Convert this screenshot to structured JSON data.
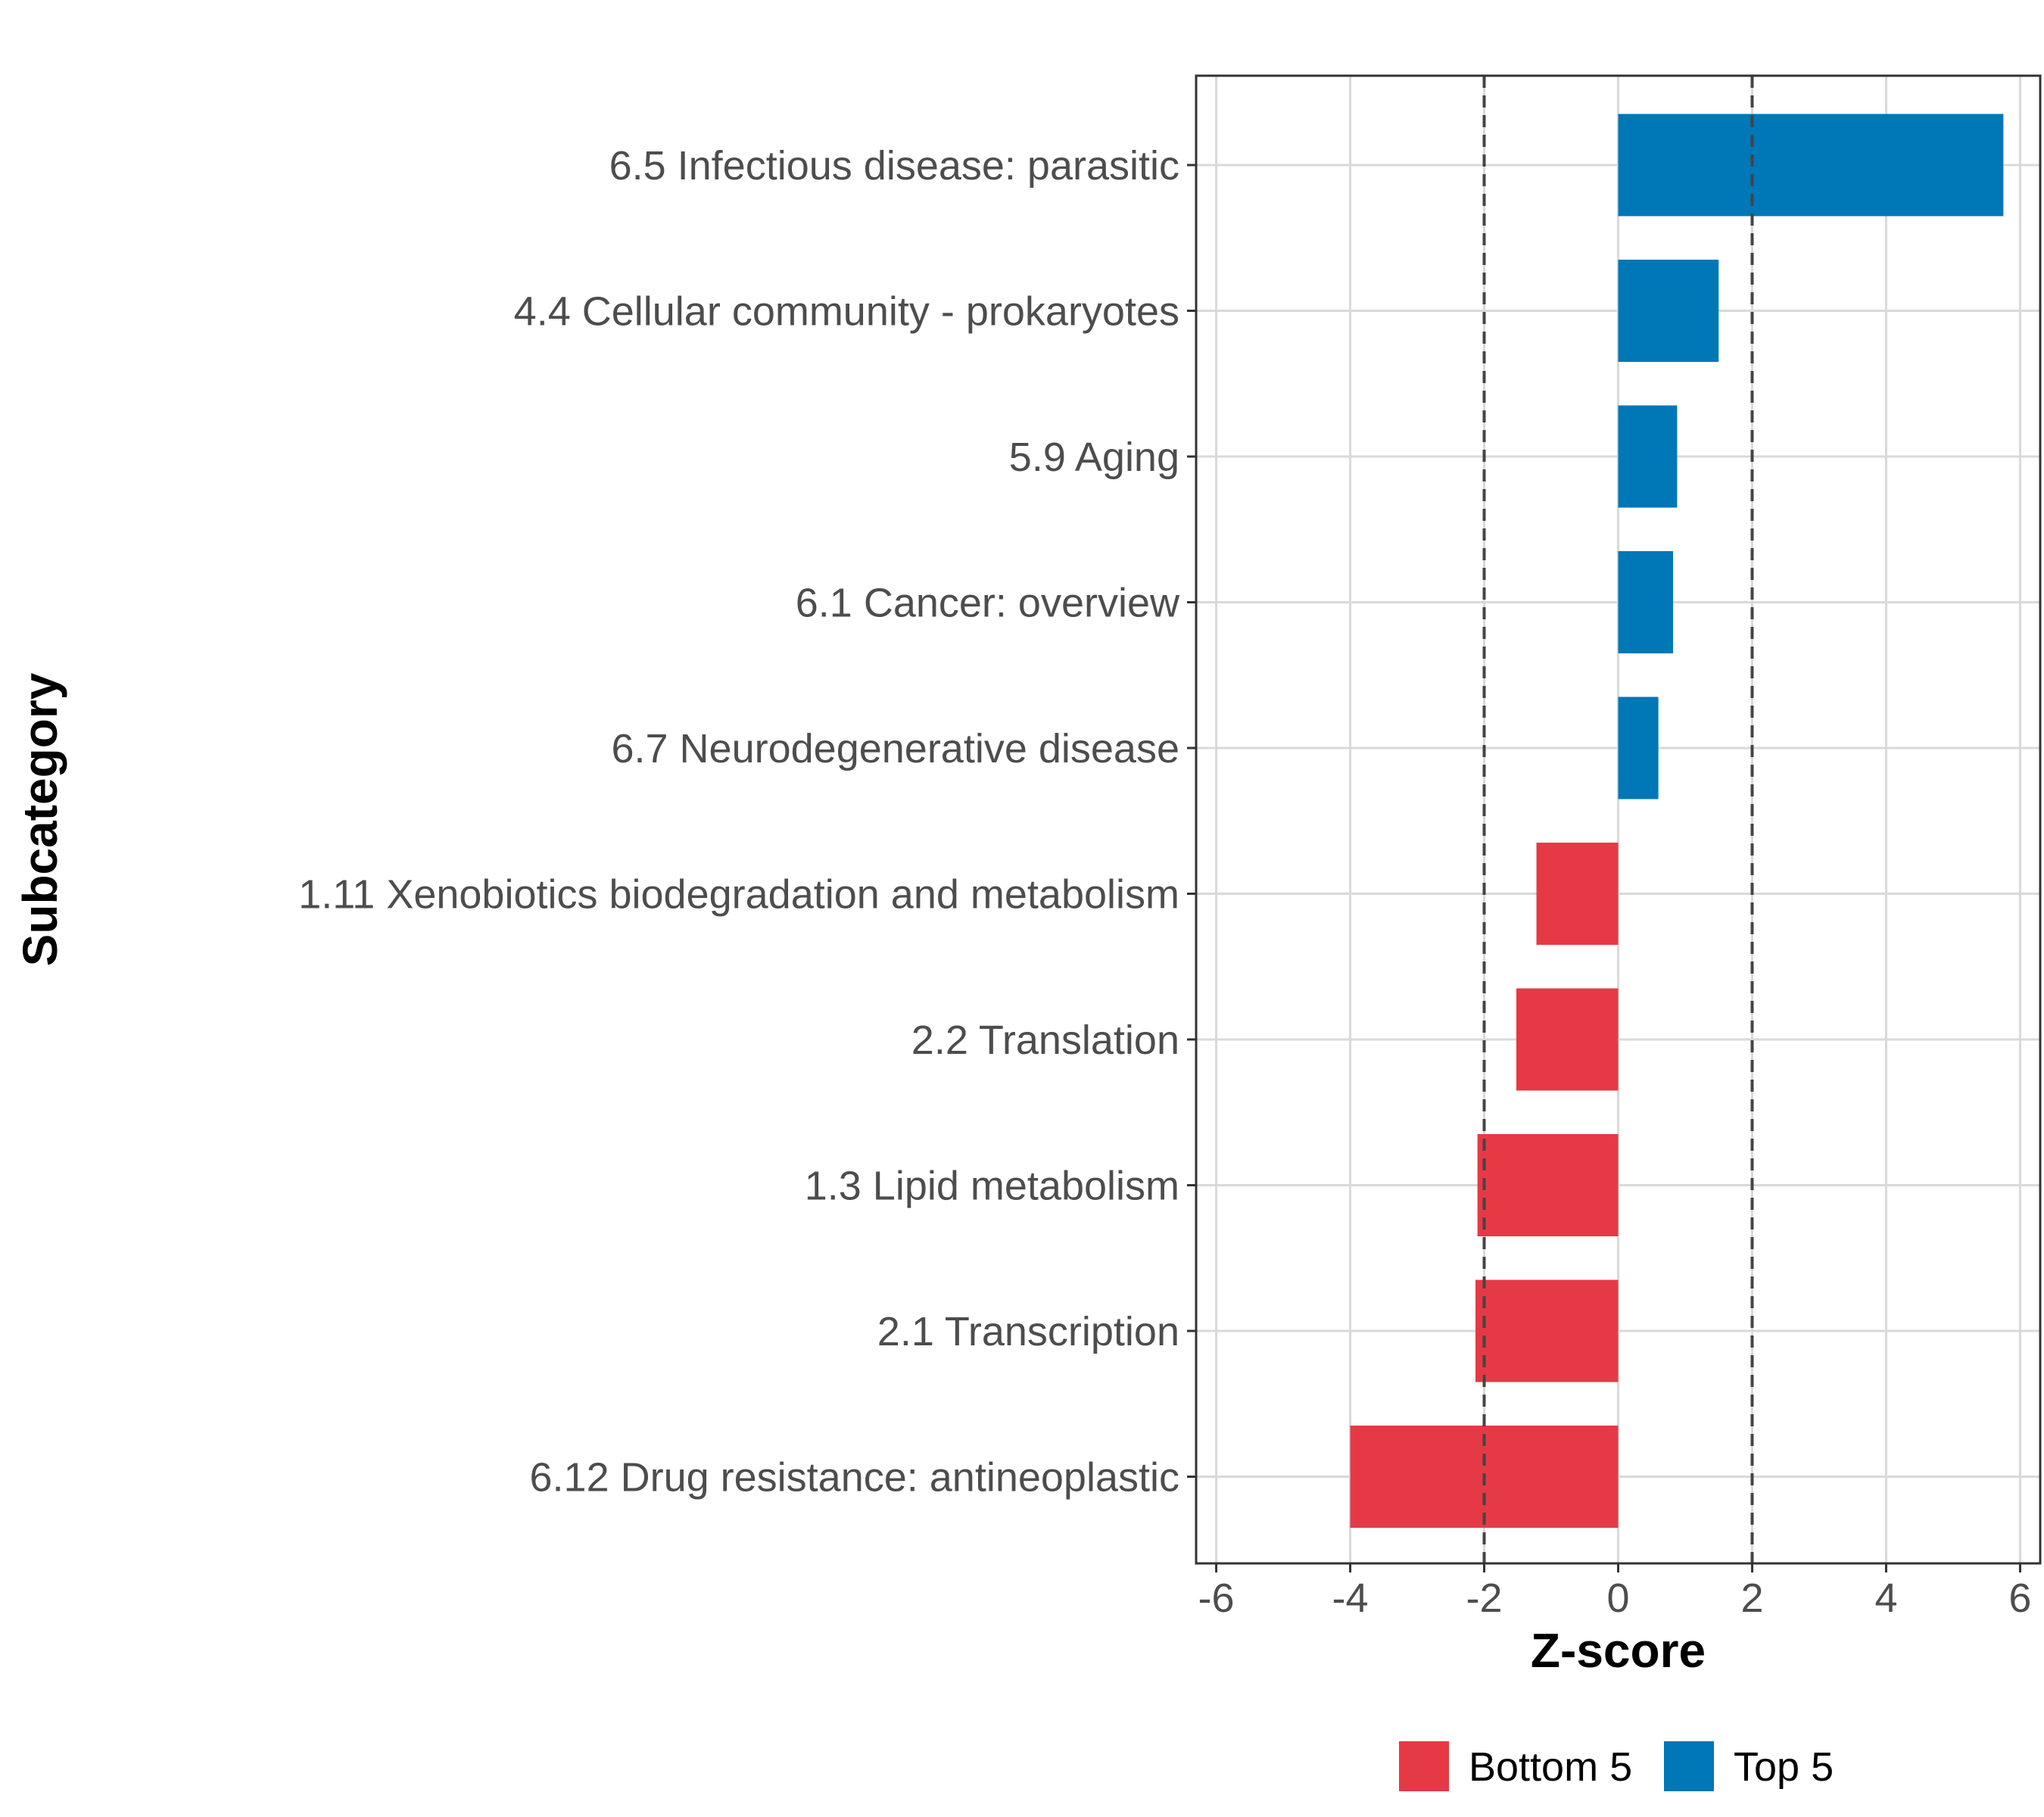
{
  "chart_data": {
    "type": "bar",
    "orientation": "horizontal",
    "title": "",
    "xlabel": "Z-score",
    "ylabel": "Subcategory",
    "xlim": [
      -6.3,
      6.3
    ],
    "xticks": [
      -6,
      -4,
      -2,
      0,
      2,
      4,
      6
    ],
    "reference_lines": [
      -2,
      2
    ],
    "grid": true,
    "legend_position": "bottom",
    "colors": {
      "Bottom 5": "#E63946",
      "Top 5": "#0077B6"
    },
    "legend": [
      {
        "name": "Bottom 5",
        "color": "#E63946"
      },
      {
        "name": "Top 5",
        "color": "#0077B6"
      }
    ],
    "bars": [
      {
        "category": "6.5 Infectious disease: parasitic",
        "value": 5.75,
        "group": "Top 5"
      },
      {
        "category": "4.4 Cellular community - prokaryotes",
        "value": 1.5,
        "group": "Top 5"
      },
      {
        "category": "5.9 Aging",
        "value": 0.88,
        "group": "Top 5"
      },
      {
        "category": "6.1 Cancer: overview",
        "value": 0.82,
        "group": "Top 5"
      },
      {
        "category": "6.7 Neurodegenerative disease",
        "value": 0.6,
        "group": "Top 5"
      },
      {
        "category": "1.11 Xenobiotics biodegradation and metabolism",
        "value": -1.22,
        "group": "Bottom 5"
      },
      {
        "category": "2.2 Translation",
        "value": -1.52,
        "group": "Bottom 5"
      },
      {
        "category": "1.3 Lipid metabolism",
        "value": -2.1,
        "group": "Bottom 5"
      },
      {
        "category": "2.1 Transcription",
        "value": -2.13,
        "group": "Bottom 5"
      },
      {
        "category": "6.12 Drug resistance: antineoplastic",
        "value": -4.0,
        "group": "Bottom 5"
      }
    ]
  }
}
